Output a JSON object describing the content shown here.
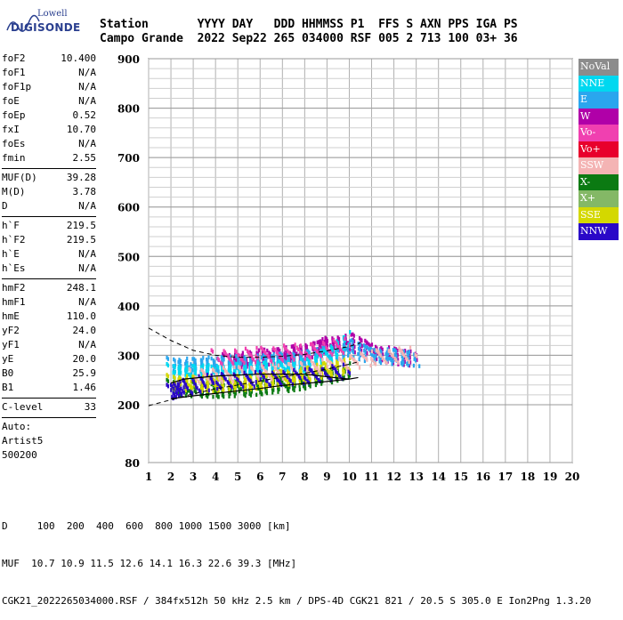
{
  "logo": {
    "line1": "Lowell",
    "line2": "DIGISONDE"
  },
  "header": {
    "row1": "Station       YYYY DAY   DDD HHMMSS P1  FFS S AXN PPS IGA PS",
    "row2": "Campo Grande  2022 Sep22 265 034000 RSF 005 2 713 100 03+ 36"
  },
  "params": {
    "group1": [
      {
        "name": "foF2",
        "value": "10.400"
      },
      {
        "name": "foF1",
        "value": "N/A"
      },
      {
        "name": "foF1p",
        "value": "N/A"
      },
      {
        "name": "foE",
        "value": "N/A"
      },
      {
        "name": "foEp",
        "value": "0.52"
      },
      {
        "name": "fxI",
        "value": "10.70"
      },
      {
        "name": "foEs",
        "value": "N/A"
      },
      {
        "name": "fmin",
        "value": "2.55"
      }
    ],
    "group2": [
      {
        "name": "MUF(D)",
        "value": "39.28"
      },
      {
        "name": "M(D)",
        "value": "3.78"
      },
      {
        "name": "D",
        "value": "N/A"
      }
    ],
    "group3": [
      {
        "name": "h`F",
        "value": "219.5"
      },
      {
        "name": "h`F2",
        "value": "219.5"
      },
      {
        "name": "h`E",
        "value": "N/A"
      },
      {
        "name": "h`Es",
        "value": "N/A"
      }
    ],
    "group4": [
      {
        "name": "hmF2",
        "value": "248.1"
      },
      {
        "name": "hmF1",
        "value": "N/A"
      },
      {
        "name": "hmE",
        "value": "110.0"
      },
      {
        "name": "yF2",
        "value": "24.0"
      },
      {
        "name": "yF1",
        "value": "N/A"
      },
      {
        "name": "yE",
        "value": "20.0"
      },
      {
        "name": "B0",
        "value": "25.9"
      },
      {
        "name": "B1",
        "value": "1.46"
      }
    ],
    "group5": [
      {
        "name": "C-level",
        "value": "33"
      }
    ],
    "auto": [
      "Auto:",
      "Artist5",
      "500200"
    ]
  },
  "legend": [
    {
      "label": "NoVal",
      "color": "#8c8c8c"
    },
    {
      "label": "NNE",
      "color": "#00d8f0"
    },
    {
      "label": "E",
      "color": "#2aa6ee"
    },
    {
      "label": "W",
      "color": "#b000a8"
    },
    {
      "label": "Vo-",
      "color": "#f040b0"
    },
    {
      "label": "Vo+",
      "color": "#e8002c"
    },
    {
      "label": "SSW",
      "color": "#f4b4b4"
    },
    {
      "label": "X-",
      "color": "#0b7a12"
    },
    {
      "label": "X+",
      "color": "#84b866"
    },
    {
      "label": "SSE",
      "color": "#d4d800"
    },
    {
      "label": "NNW",
      "color": "#2a08c8"
    }
  ],
  "chart_data": {
    "type": "scatter",
    "x_ticks": [
      1,
      2,
      3,
      4,
      5,
      6,
      7,
      8,
      9,
      10,
      11,
      12,
      13,
      14,
      15,
      16,
      17,
      18,
      19,
      20
    ],
    "y_ticks": [
      80,
      200,
      300,
      400,
      500,
      600,
      700,
      800,
      900
    ],
    "xlim": [
      1,
      20
    ],
    "y_scale": "virtual-height (80 to 900 km)",
    "grid": true,
    "series": [
      {
        "name": "W",
        "color": "#b000a8",
        "points": [
          [
            4.5,
            292
          ],
          [
            5.5,
            296
          ],
          [
            6.5,
            302
          ],
          [
            7.5,
            308
          ],
          [
            8.5,
            318
          ],
          [
            9,
            325
          ],
          [
            10,
            332
          ],
          [
            11,
            312
          ],
          [
            12,
            302
          ],
          [
            13,
            297
          ]
        ]
      },
      {
        "name": "E",
        "color": "#2aa6ee",
        "points": [
          [
            2,
            285
          ],
          [
            3,
            282
          ],
          [
            4,
            286
          ],
          [
            5,
            288
          ],
          [
            6,
            290
          ],
          [
            7,
            293
          ],
          [
            8,
            298
          ],
          [
            9,
            305
          ],
          [
            10,
            320
          ],
          [
            11,
            305
          ],
          [
            12,
            300
          ],
          [
            13,
            296
          ]
        ]
      },
      {
        "name": "NNE",
        "color": "#00d8f0",
        "points": [
          [
            2,
            272
          ],
          [
            3,
            268
          ],
          [
            4,
            270
          ],
          [
            5,
            272
          ],
          [
            6,
            275
          ],
          [
            7,
            278
          ],
          [
            8,
            282
          ],
          [
            9,
            300
          ],
          [
            10,
            342
          ]
        ]
      },
      {
        "name": "X-",
        "color": "#0b7a12",
        "points": [
          [
            2,
            240
          ],
          [
            3,
            235
          ],
          [
            4,
            234
          ],
          [
            5,
            236
          ],
          [
            6,
            240
          ],
          [
            7,
            245
          ],
          [
            8,
            252
          ],
          [
            9,
            262
          ],
          [
            10,
            275
          ]
        ]
      },
      {
        "name": "SSE",
        "color": "#d4d800",
        "points": [
          [
            2,
            250
          ],
          [
            3,
            246
          ],
          [
            4,
            246
          ],
          [
            5,
            248
          ],
          [
            6,
            252
          ],
          [
            7,
            258
          ],
          [
            8,
            265
          ],
          [
            9,
            274
          ],
          [
            10,
            285
          ]
        ]
      },
      {
        "name": "SSW",
        "color": "#f4b4b4",
        "points": [
          [
            3,
            262
          ],
          [
            5,
            266
          ],
          [
            7,
            272
          ],
          [
            9,
            282
          ],
          [
            11,
            300
          ],
          [
            13,
            306
          ]
        ]
      },
      {
        "name": "NNW",
        "color": "#2a08c8",
        "points": [
          [
            2,
            230
          ],
          [
            2.5,
            240
          ],
          [
            4,
            252
          ],
          [
            6,
            256
          ],
          [
            8,
            262
          ],
          [
            10,
            272
          ]
        ]
      },
      {
        "name": "Vo-",
        "color": "#f040b0",
        "points": [
          [
            4,
            300
          ],
          [
            6,
            305
          ],
          [
            8,
            312
          ],
          [
            10,
            325
          ]
        ]
      }
    ],
    "curves": {
      "dashed_upper": [
        [
          1,
          355
        ],
        [
          2,
          330
        ],
        [
          3,
          310
        ],
        [
          4,
          300
        ],
        [
          5,
          296
        ],
        [
          6,
          296
        ],
        [
          7,
          298
        ],
        [
          8,
          302
        ],
        [
          9,
          309
        ],
        [
          10,
          318
        ],
        [
          10.5,
          325
        ]
      ],
      "dashed_lower": [
        [
          1,
          198
        ],
        [
          2,
          210
        ],
        [
          3,
          222
        ],
        [
          4,
          232
        ],
        [
          5,
          240
        ],
        [
          6,
          248
        ],
        [
          7,
          256
        ],
        [
          8,
          264
        ],
        [
          9,
          272
        ],
        [
          10,
          282
        ],
        [
          10.5,
          288
        ]
      ],
      "solid_profile": [
        [
          2,
          212
        ],
        [
          3,
          218
        ],
        [
          4,
          223
        ],
        [
          5,
          228
        ],
        [
          6,
          233
        ],
        [
          7,
          239
        ],
        [
          8,
          243
        ],
        [
          9,
          247
        ],
        [
          10,
          252
        ],
        [
          10.4,
          255
        ],
        [
          10,
          252
        ],
        [
          9.5,
          254
        ],
        [
          8,
          262
        ],
        [
          6,
          262
        ],
        [
          4,
          258
        ],
        [
          2.6,
          252
        ],
        [
          2,
          244
        ]
      ]
    }
  },
  "footer": {
    "line1": "D     100  200  400  600  800 1000 1500 3000 [km]",
    "line2": "MUF  10.7 10.9 11.5 12.6 14.1 16.3 22.6 39.3 [MHz]",
    "line3": "CGK21_2022265034000.RSF / 384fx512h 50 kHz 2.5 km / DPS-4D CGK21 821 / 20.5 S 305.0 E Ion2Png 1.3.20"
  }
}
